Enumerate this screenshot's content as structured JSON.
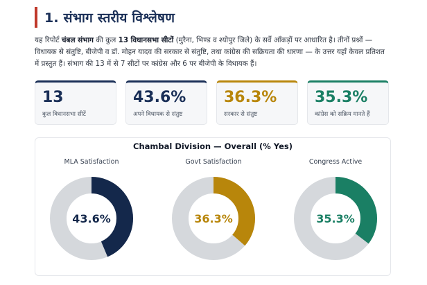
{
  "heading": {
    "title": "1. संभाग स्तरीय विश्लेषण",
    "accent": "#c0392b"
  },
  "intro": {
    "p1": "यह रिपोर्ट ",
    "b1": "चंबल संभाग",
    "p2": " की कुल ",
    "b2": "13 विधानसभा सीटों",
    "p3": " (मुरैना, भिण्ड व श्योपुर जिले) के सर्वे आँकड़ों पर आधारित है। तीनों प्रश्नों — विधायक से संतुष्टि, बीजेपी व डॉ. मोहन यादव की सरकार से संतुष्टि, तथा कांग्रेस की सक्रियता की धारणा — के उत्तर यहाँ केवल प्रतिशत में प्रस्तुत हैं। संभाग की 13 में से 7 सीटों पर कांग्रेस और 6 पर बीजेपी के विधायक हैं।"
  },
  "cards": [
    {
      "value": "13",
      "label": "कुल विधानसभा सीटें",
      "color": "#1a2f57"
    },
    {
      "value": "43.6%",
      "label": "अपने विधायक से संतुष्ट",
      "color": "#1a2f57"
    },
    {
      "value": "36.3%",
      "label": "सरकार से संतुष्ट",
      "color": "#b8860b"
    },
    {
      "value": "35.3%",
      "label": "कांग्रेस को सक्रिय मानते हैं",
      "color": "#1a7f64"
    }
  ],
  "chart_data": {
    "type": "pie",
    "title": "Chambal Division — Overall (% Yes)",
    "series": [
      {
        "name": "MLA Satisfaction",
        "value": 43.6,
        "label": "43.6%",
        "color": "#14284b"
      },
      {
        "name": "Govt Satisfaction",
        "value": 36.3,
        "label": "36.3%",
        "color": "#b8860b"
      },
      {
        "name": "Congress Active",
        "value": 35.3,
        "label": "35.3%",
        "color": "#1a7f64"
      }
    ],
    "remainder_color": "#d5d8dc"
  }
}
